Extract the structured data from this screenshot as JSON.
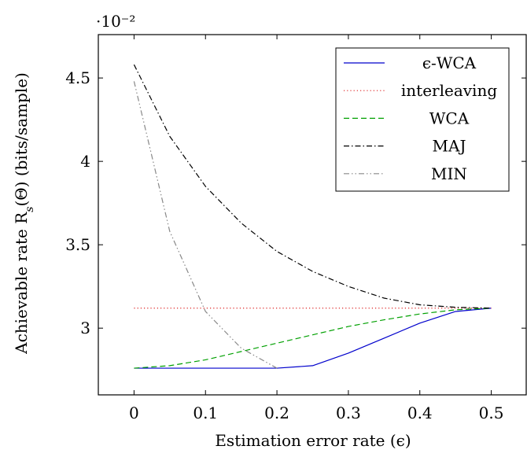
{
  "chart_data": {
    "type": "line",
    "title": "",
    "xlabel": "Estimation error rate (ϵ)",
    "ylabel": "Achievable rate R_s(Θ) (bits/sample)",
    "y_multiplier": "·10⁻²",
    "xlim": [
      -0.05,
      0.55
    ],
    "ylim": [
      2.6,
      4.76
    ],
    "x_ticks": [
      0,
      0.1,
      0.2,
      0.3,
      0.4,
      0.5
    ],
    "x_tick_labels": [
      "0",
      "0.1",
      "0.2",
      "0.3",
      "0.4",
      "0.5"
    ],
    "y_ticks": [
      3,
      3.5,
      4,
      4.5
    ],
    "y_tick_labels": [
      "3",
      "3.5",
      "4",
      "4.5"
    ],
    "grid": false,
    "legend_position": "top-right",
    "series": [
      {
        "name": "ϵ-WCA",
        "color": "#0000cc",
        "dash": "solid",
        "x": [
          0,
          0.05,
          0.1,
          0.15,
          0.2,
          0.25,
          0.3,
          0.35,
          0.4,
          0.45,
          0.5
        ],
        "y": [
          2.76,
          2.76,
          2.76,
          2.76,
          2.76,
          2.775,
          2.85,
          2.94,
          3.03,
          3.1,
          3.12
        ]
      },
      {
        "name": "interleaving",
        "color": "#dd2222",
        "dash": "dotted",
        "x": [
          0,
          0.5
        ],
        "y": [
          3.12,
          3.12
        ]
      },
      {
        "name": "WCA",
        "color": "#00a000",
        "dash": "dashed",
        "x": [
          0,
          0.05,
          0.1,
          0.15,
          0.2,
          0.25,
          0.3,
          0.35,
          0.4,
          0.45,
          0.5
        ],
        "y": [
          2.76,
          2.775,
          2.81,
          2.86,
          2.91,
          2.96,
          3.01,
          3.05,
          3.085,
          3.11,
          3.12
        ]
      },
      {
        "name": "MAJ",
        "color": "#000000",
        "dash": "dashdot",
        "x": [
          0,
          0.05,
          0.1,
          0.15,
          0.2,
          0.25,
          0.3,
          0.35,
          0.4,
          0.45,
          0.5
        ],
        "y": [
          4.58,
          4.15,
          3.85,
          3.63,
          3.46,
          3.34,
          3.25,
          3.18,
          3.14,
          3.125,
          3.12
        ]
      },
      {
        "name": "MIN",
        "color": "#888888",
        "dash": "dashdotdot",
        "x": [
          0,
          0.05,
          0.1,
          0.15,
          0.2
        ],
        "y": [
          4.48,
          3.58,
          3.1,
          2.88,
          2.76
        ]
      }
    ]
  }
}
